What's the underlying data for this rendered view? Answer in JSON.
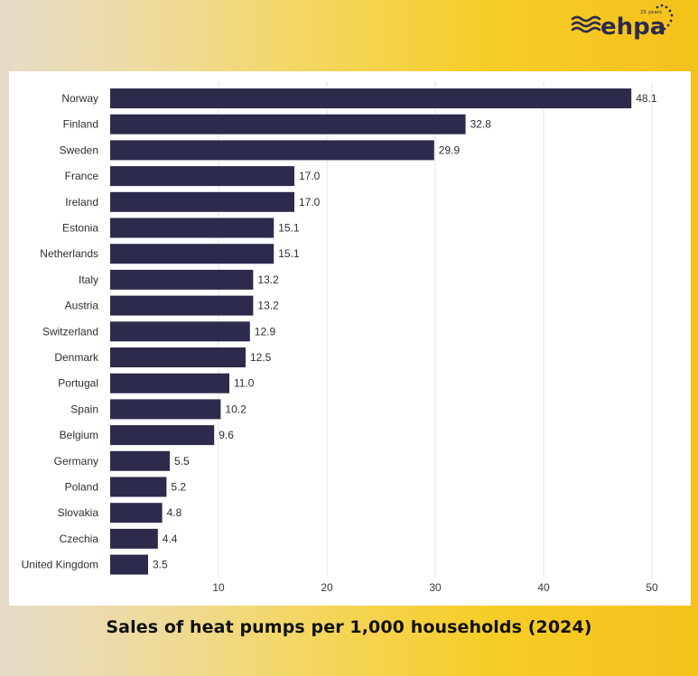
{
  "brand": {
    "logo_text": "ehpa",
    "anniversary_text": "25 years",
    "logo_color": "#2d2b4c"
  },
  "colors": {
    "bar": "#2d2b4c",
    "grid": "#e3e3e8"
  },
  "caption": "Sales of heat pumps per 1,000 households (2024)",
  "chart_data": {
    "type": "bar",
    "orientation": "horizontal",
    "title": "Sales of heat pumps per 1,000 households (2024)",
    "xlabel": "",
    "ylabel": "",
    "xlim": [
      0,
      50
    ],
    "xticks": [
      10,
      20,
      30,
      40,
      50
    ],
    "grid": true,
    "categories": [
      "Norway",
      "Finland",
      "Sweden",
      "France",
      "Ireland",
      "Estonia",
      "Netherlands",
      "Italy",
      "Austria",
      "Switzerland",
      "Denmark",
      "Portugal",
      "Spain",
      "Belgium",
      "Germany",
      "Poland",
      "Slovakia",
      "Czechia",
      "United Kingdom"
    ],
    "values": [
      48.1,
      32.8,
      29.9,
      17.0,
      17.0,
      15.1,
      15.1,
      13.2,
      13.2,
      12.9,
      12.5,
      11.0,
      10.2,
      9.6,
      5.5,
      5.2,
      4.8,
      4.4,
      3.5
    ],
    "value_labels": [
      "48.1",
      "32.8",
      "29.9",
      "17.0",
      "17.0",
      "15.1",
      "15.1",
      "13.2",
      "13.2",
      "12.9",
      "12.5",
      "11.0",
      "10.2",
      "9.6",
      "5.5",
      "5.2",
      "4.8",
      "4.4",
      "3.5"
    ]
  }
}
